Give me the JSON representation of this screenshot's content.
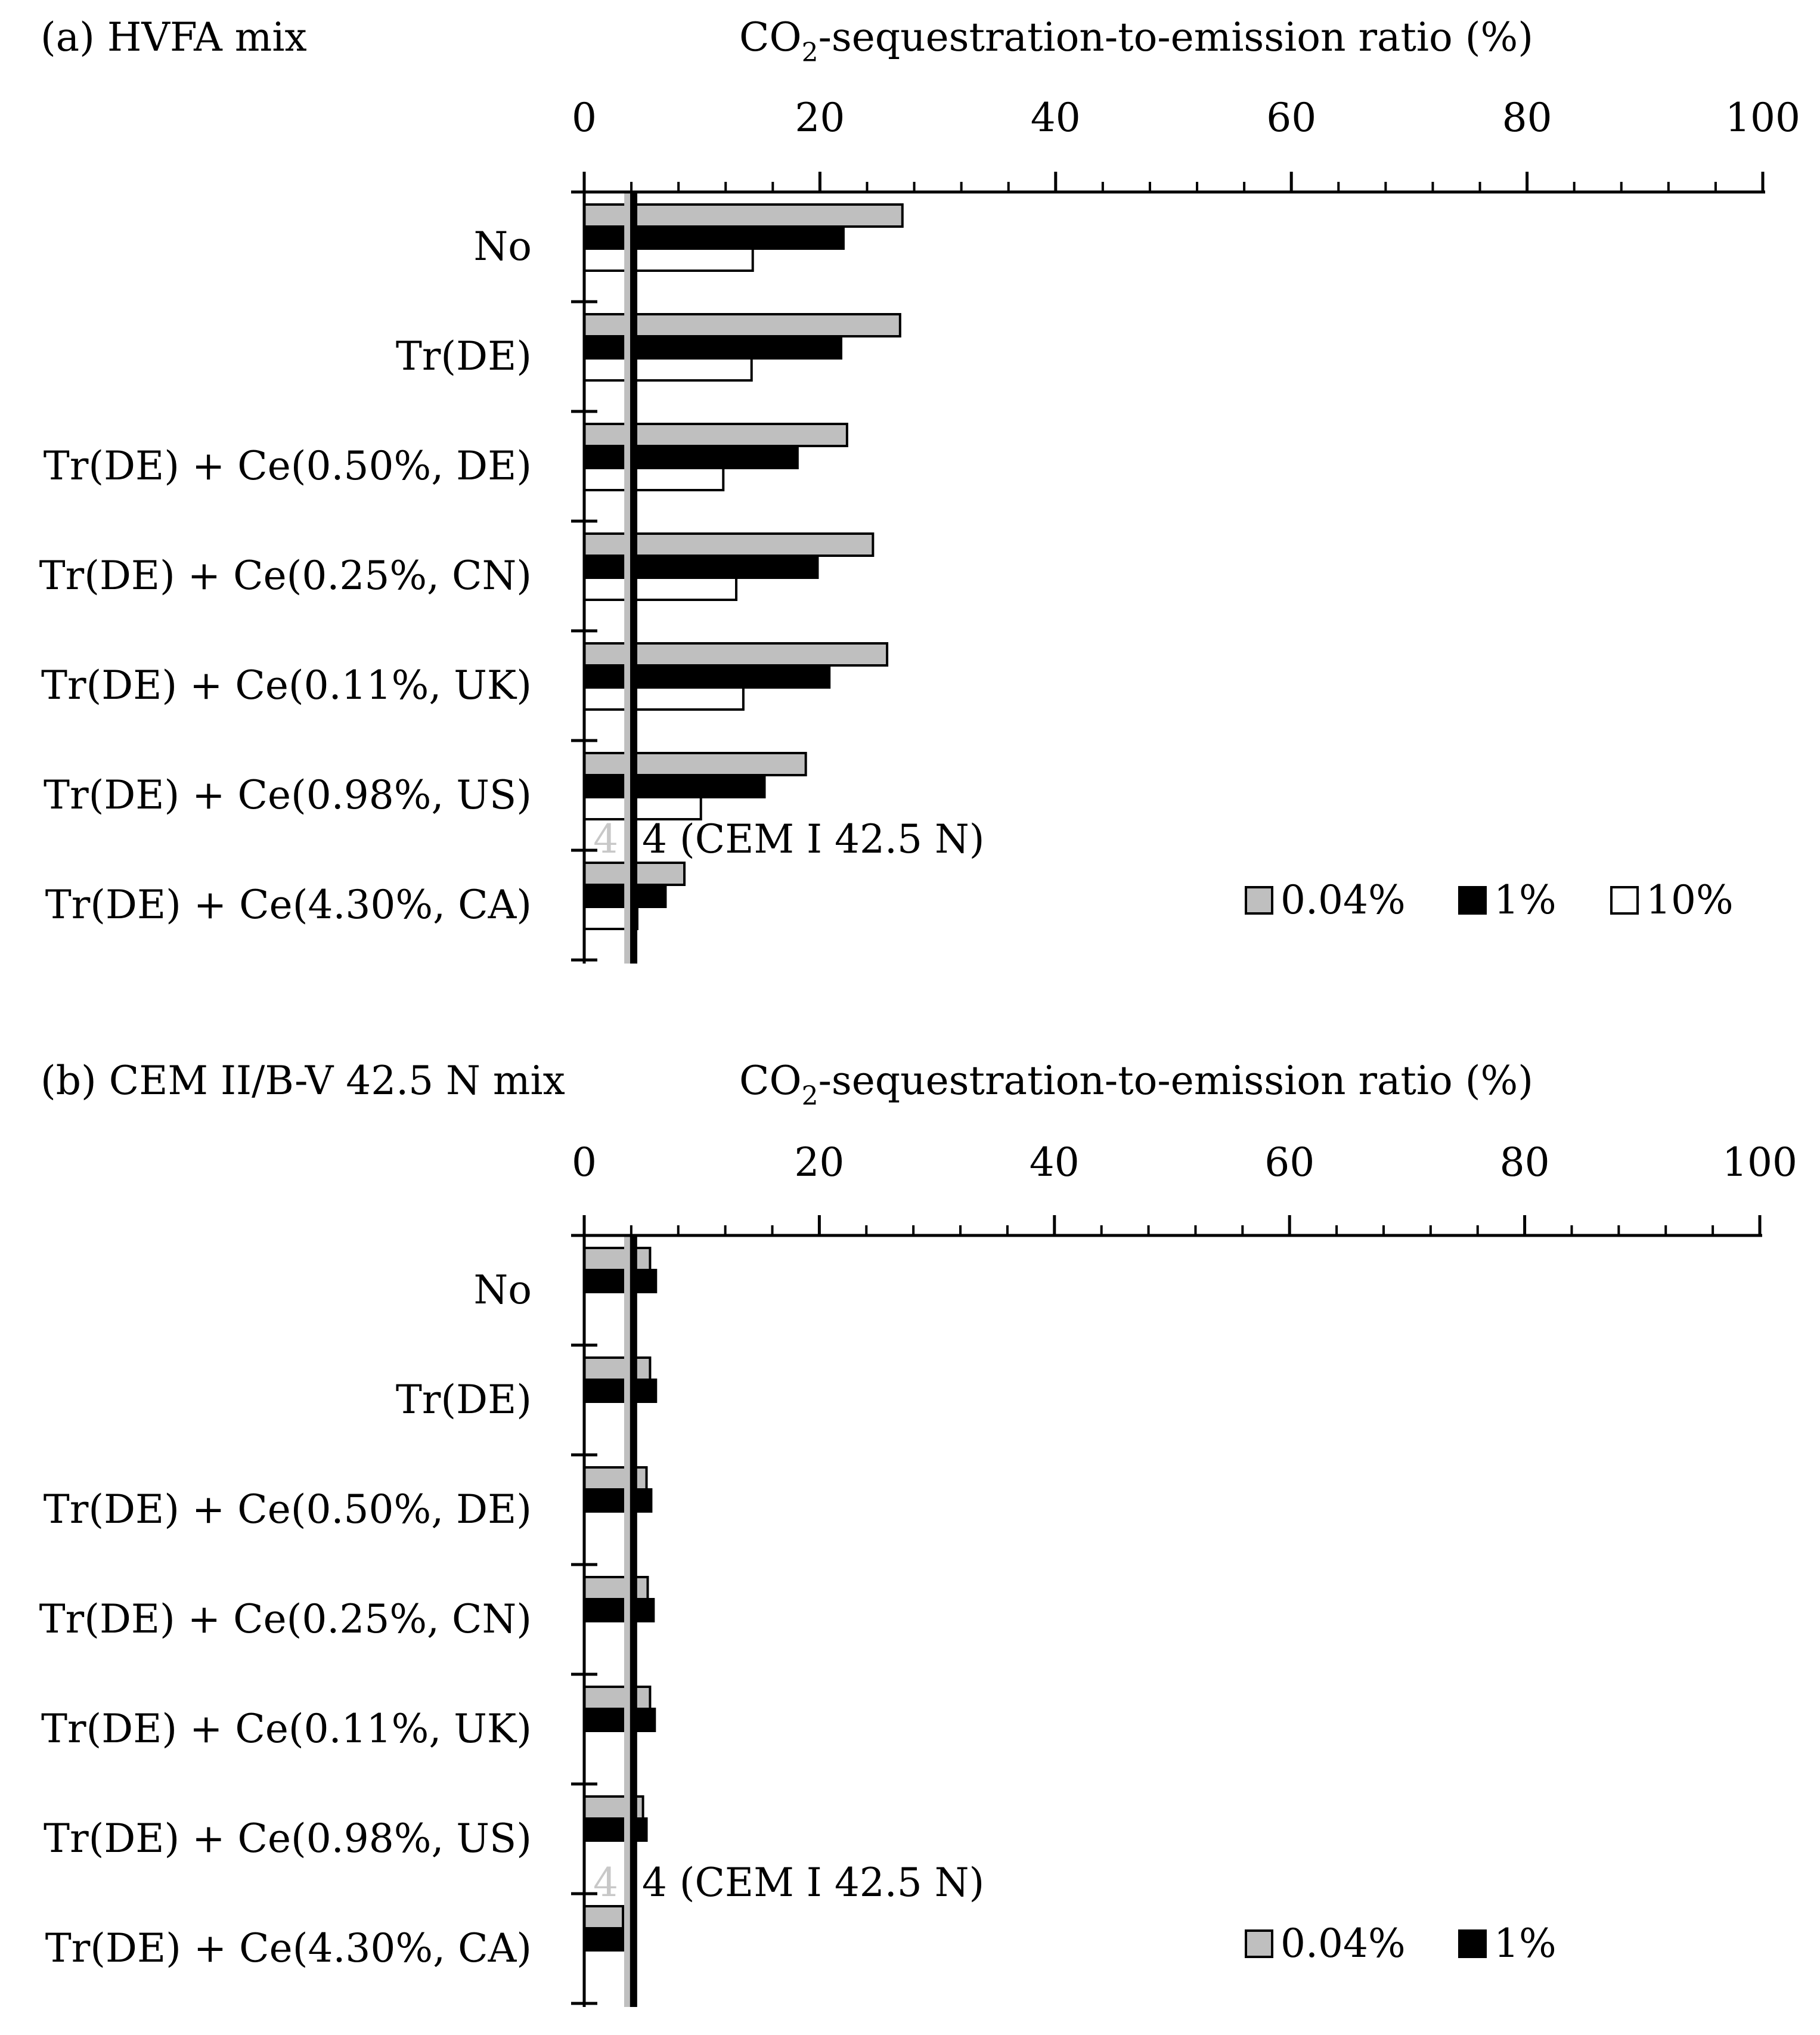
{
  "colors": {
    "gray_bar": "#bfbfbf",
    "black_bar": "#000000",
    "white_bar": "#ffffff",
    "ref_light": "#bfbfbf",
    "ref_dark": "#000000"
  },
  "chart_data": [
    {
      "id": "a",
      "type": "bar",
      "orientation": "horizontal",
      "panel_label": "(a)  HVFA mix",
      "axis_title_prefix": "CO",
      "axis_title_sub": "2",
      "axis_title_suffix": "-sequestration-to-emission ratio (%)",
      "xlim": [
        0,
        100
      ],
      "xticks": [
        "0",
        "20",
        "40",
        "60",
        "80",
        "100"
      ],
      "categories": [
        "No",
        "Tr(DE)",
        "Tr(DE) + Ce(0.50%, DE)",
        "Tr(DE) + Ce(0.25%, CN)",
        "Tr(DE) + Ce(0.11%, UK)",
        "Tr(DE) + Ce(0.98%, US)",
        "Tr(DE) + Ce(4.30%, CA)"
      ],
      "series": [
        {
          "name": "0.04%",
          "color": "#bfbfbf",
          "values": [
            27.0,
            26.8,
            22.3,
            24.5,
            25.7,
            18.8,
            8.5
          ]
        },
        {
          "name": "1%",
          "color": "#000000",
          "values": [
            22.0,
            21.8,
            18.1,
            19.8,
            20.8,
            15.3,
            6.9
          ]
        },
        {
          "name": "10%",
          "color": "#ffffff",
          "values": [
            14.3,
            14.2,
            11.8,
            12.9,
            13.5,
            9.9,
            4.5
          ]
        }
      ],
      "reference_lines": [
        {
          "value": 3.7,
          "label": "4",
          "color": "#bfbfbf"
        },
        {
          "value": 4.2,
          "label": "4 (CEM I 42.5 N)",
          "color": "#000000"
        }
      ],
      "legend": "bottom-right"
    },
    {
      "id": "b",
      "type": "bar",
      "orientation": "horizontal",
      "panel_label": "(b)  CEM II/B-V 42.5 N mix",
      "axis_title_prefix": "CO",
      "axis_title_sub": "2",
      "axis_title_suffix": "-sequestration-to-emission ratio (%)",
      "xlim": [
        0,
        100
      ],
      "xticks": [
        "0",
        "20",
        "40",
        "60",
        "80",
        "100"
      ],
      "categories": [
        "No",
        "Tr(DE)",
        "Tr(DE) + Ce(0.50%, DE)",
        "Tr(DE) + Ce(0.25%, CN)",
        "Tr(DE) + Ce(0.11%, UK)",
        "Tr(DE) + Ce(0.98%, US)",
        "Tr(DE) + Ce(4.30%, CA)"
      ],
      "series": [
        {
          "name": "0.04%",
          "color": "#bfbfbf",
          "values": [
            5.6,
            5.6,
            5.3,
            5.4,
            5.6,
            5.0,
            3.3
          ]
        },
        {
          "name": "1%",
          "color": "#000000",
          "values": [
            6.1,
            6.1,
            5.7,
            5.9,
            6.0,
            5.3,
            3.4
          ]
        }
      ],
      "reference_lines": [
        {
          "value": 3.7,
          "label": "4",
          "color": "#bfbfbf"
        },
        {
          "value": 4.2,
          "label": "4 (CEM I 42.5 N)",
          "color": "#000000"
        }
      ],
      "legend": "bottom-right"
    }
  ]
}
